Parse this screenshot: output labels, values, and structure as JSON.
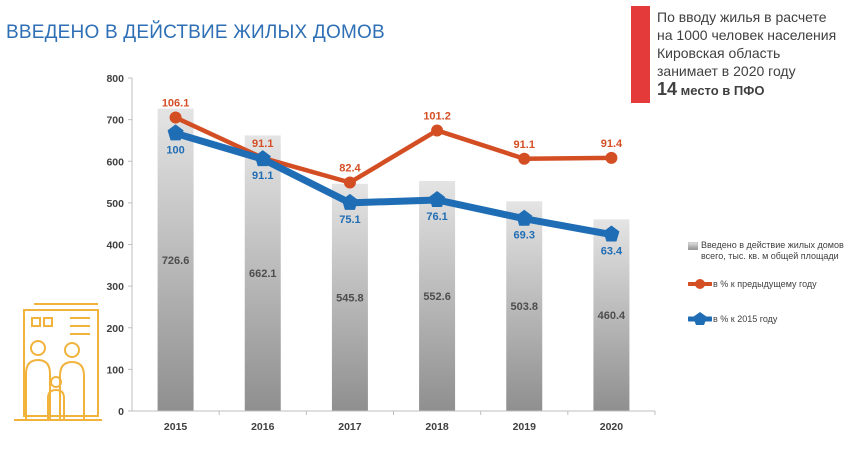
{
  "title": "ВВЕДЕНО В ДЕЙСТВИЕ ЖИЛЫХ ДОМОВ",
  "info": {
    "lines": [
      "По вводу жилья в расчете",
      "на 1000 человек населения",
      "Кировская область",
      "занимает в 2020 году"
    ],
    "rank_number": "14",
    "rank_text": "место в ПФО",
    "accent_color": "#e43b3a"
  },
  "chart_data": {
    "type": "bar",
    "categories": [
      "2015",
      "2016",
      "2017",
      "2018",
      "2019",
      "2020"
    ],
    "ylim": [
      0,
      800
    ],
    "yticks": [
      "0",
      "100",
      "200",
      "300",
      "400",
      "500",
      "600",
      "700",
      "800"
    ],
    "grid": false,
    "legend_position": "right",
    "series": [
      {
        "name": "Введено в действие жилых домов всего, тыс. кв. м общей площади",
        "kind": "bar",
        "color": "#b3b3b3",
        "values": [
          726.6,
          662.1,
          545.8,
          552.6,
          503.8,
          460.4
        ],
        "labels": [
          "726.6",
          "662.1",
          "545.8",
          "552.6",
          "503.8",
          "460.4"
        ]
      },
      {
        "name": "в % к предыдущему году",
        "kind": "line",
        "color": "#d44e24",
        "values": [
          106.1,
          91.1,
          82.4,
          101.2,
          91.1,
          91.4
        ],
        "labels": [
          "106.1",
          "91.1",
          "82.4",
          "101.2",
          "91.1",
          "91.4"
        ],
        "plotted_at": [
          705,
          608,
          549,
          674,
          606,
          608
        ]
      },
      {
        "name": "в % к 2015 году",
        "kind": "line",
        "color": "#1f6db5",
        "values": [
          100,
          91.1,
          75.1,
          76.1,
          69.3,
          63.4
        ],
        "labels": [
          "100",
          "91.1",
          "75.1",
          "76.1",
          "69.3",
          "63.4"
        ],
        "plotted_at": [
          667,
          605,
          500,
          507,
          462,
          424
        ]
      }
    ]
  },
  "legend": {
    "bar_label": "Введено в действие жилых домов всего, тыс. кв. м общей площади",
    "line1_label": "в % к предыдущему году",
    "line2_label": "в % к 2015 году"
  },
  "icon": {
    "name": "family-house-icon",
    "color": "#f2b33d"
  }
}
